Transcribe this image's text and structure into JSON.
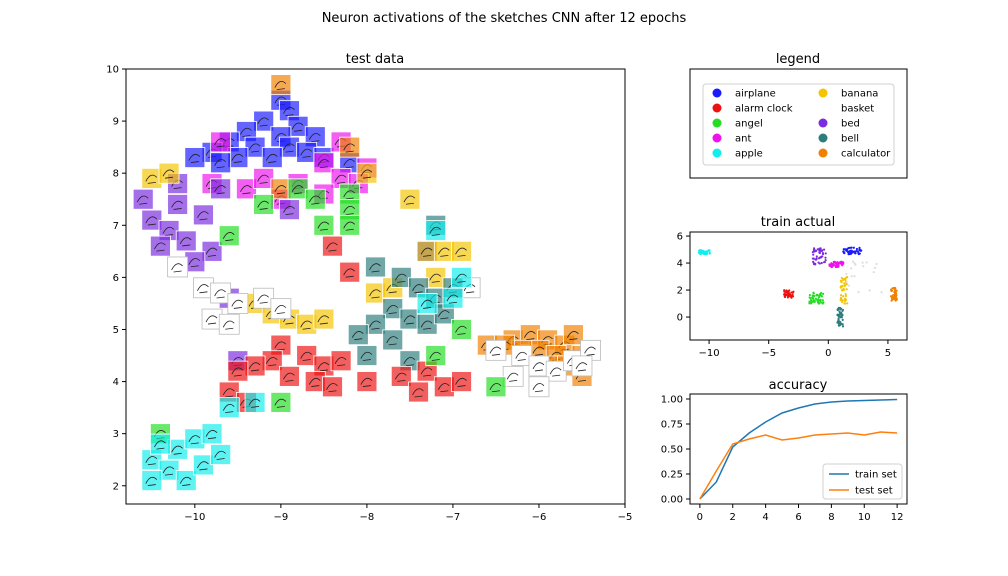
{
  "figure": {
    "suptitle": "Neuron activations of the sketches CNN after 12 epochs"
  },
  "colors": {
    "airplane": "#1a1aff",
    "alarm clock": "#ee1111",
    "angel": "#22dd22",
    "ant": "#ee11ee",
    "apple": "#11eeee",
    "banana": "#f5c400",
    "basket": "#ffffff",
    "bed": "#7b2be0",
    "bell": "#2e7d7d",
    "calculator": "#f08000"
  },
  "legend": {
    "title": "legend",
    "entries": [
      "airplane",
      "alarm clock",
      "angel",
      "ant",
      "apple",
      "banana",
      "basket",
      "bed",
      "bell",
      "calculator"
    ]
  },
  "chart_data": [
    {
      "type": "scatter",
      "title": "test data",
      "xlim": [
        -10.8,
        -5
      ],
      "ylim": [
        1.65,
        10
      ],
      "xticks": [
        -10,
        -9,
        -8,
        -7,
        -6,
        -5
      ],
      "yticks": [
        2,
        3,
        4,
        5,
        6,
        7,
        8,
        9,
        10
      ],
      "tick_labels_x": [
        "−10",
        "−9",
        "−8",
        "−7",
        "−6",
        "−5"
      ],
      "tick_labels_y": [
        "2",
        "3",
        "4",
        "5",
        "6",
        "7",
        "8",
        "9",
        "10"
      ],
      "marker": "sketch thumbnail",
      "clusters": [
        {
          "category": "airplane",
          "points": [
            [
              -9.0,
              9.4
            ],
            [
              -8.9,
              9.2
            ],
            [
              -9.2,
              9.0
            ],
            [
              -8.8,
              8.9
            ],
            [
              -9.4,
              8.8
            ],
            [
              -9.0,
              8.7
            ],
            [
              -8.6,
              8.7
            ],
            [
              -9.6,
              8.6
            ],
            [
              -9.3,
              8.5
            ],
            [
              -8.9,
              8.5
            ],
            [
              -9.8,
              8.4
            ],
            [
              -9.5,
              8.3
            ],
            [
              -8.7,
              8.4
            ],
            [
              -9.1,
              8.3
            ],
            [
              -8.5,
              8.3
            ],
            [
              -9.7,
              8.2
            ],
            [
              -8.2,
              8.2
            ],
            [
              -10.0,
              8.3
            ],
            [
              -7.3,
              6.5
            ]
          ]
        },
        {
          "category": "ant",
          "points": [
            [
              -9.7,
              8.6
            ],
            [
              -8.3,
              8.6
            ],
            [
              -8.5,
              8.2
            ],
            [
              -8.0,
              8.1
            ],
            [
              -8.3,
              7.9
            ],
            [
              -9.4,
              7.7
            ],
            [
              -8.8,
              7.8
            ],
            [
              -9.0,
              7.5
            ],
            [
              -8.5,
              7.6
            ],
            [
              -8.1,
              7.8
            ],
            [
              -9.2,
              7.9
            ],
            [
              -9.8,
              7.8
            ]
          ]
        },
        {
          "category": "bed",
          "points": [
            [
              -10.6,
              7.5
            ],
            [
              -10.2,
              7.4
            ],
            [
              -9.9,
              7.2
            ],
            [
              -10.5,
              7.1
            ],
            [
              -10.3,
              6.9
            ],
            [
              -10.1,
              6.7
            ],
            [
              -10.4,
              6.6
            ],
            [
              -9.8,
              6.5
            ],
            [
              -10.0,
              6.3
            ],
            [
              -9.6,
              5.6
            ],
            [
              -9.5,
              4.4
            ],
            [
              -9.7,
              7.7
            ],
            [
              -10.2,
              7.8
            ],
            [
              -8.9,
              7.3
            ]
          ]
        },
        {
          "category": "calculator",
          "points": [
            [
              -9.0,
              9.7
            ],
            [
              -8.2,
              8.5
            ],
            [
              -9.0,
              7.7
            ],
            [
              -6.6,
              4.7
            ],
            [
              -6.3,
              4.8
            ],
            [
              -6.1,
              4.9
            ],
            [
              -5.9,
              4.8
            ],
            [
              -5.7,
              4.7
            ],
            [
              -6.0,
              4.6
            ],
            [
              -5.8,
              4.5
            ],
            [
              -6.2,
              4.6
            ],
            [
              -5.6,
              4.9
            ],
            [
              -5.5,
              4.5
            ],
            [
              -5.7,
              4.3
            ],
            [
              -5.5,
              4.1
            ],
            [
              -6.4,
              4.7
            ],
            [
              -5.9,
              4.3
            ]
          ]
        },
        {
          "category": "banana",
          "points": [
            [
              -10.5,
              7.9
            ],
            [
              -10.3,
              8.0
            ],
            [
              -9.3,
              5.5
            ],
            [
              -9.1,
              5.3
            ],
            [
              -8.9,
              5.2
            ],
            [
              -8.7,
              5.1
            ],
            [
              -8.5,
              5.2
            ],
            [
              -7.9,
              5.7
            ],
            [
              -7.7,
              5.8
            ],
            [
              -7.3,
              6.5
            ],
            [
              -7.1,
              6.5
            ],
            [
              -6.9,
              6.5
            ],
            [
              -7.2,
              6.0
            ],
            [
              -7.5,
              7.5
            ],
            [
              -8.0,
              8.0
            ]
          ]
        },
        {
          "category": "basket",
          "points": [
            [
              -10.2,
              6.2
            ],
            [
              -9.9,
              5.8
            ],
            [
              -9.7,
              5.7
            ],
            [
              -9.5,
              5.5
            ],
            [
              -9.2,
              5.6
            ],
            [
              -9.0,
              5.4
            ],
            [
              -9.8,
              5.2
            ],
            [
              -9.6,
              5.1
            ],
            [
              -6.8,
              5.8
            ],
            [
              -6.5,
              4.6
            ],
            [
              -6.2,
              4.5
            ],
            [
              -6.0,
              4.3
            ],
            [
              -5.8,
              4.2
            ],
            [
              -5.6,
              4.4
            ],
            [
              -5.4,
              4.6
            ],
            [
              -5.5,
              4.3
            ],
            [
              -6.0,
              3.9
            ],
            [
              -6.3,
              4.1
            ]
          ]
        },
        {
          "category": "bell",
          "points": [
            [
              -7.9,
              6.2
            ],
            [
              -7.6,
              6.0
            ],
            [
              -7.4,
              5.8
            ],
            [
              -7.2,
              5.6
            ],
            [
              -7.0,
              5.8
            ],
            [
              -7.7,
              5.4
            ],
            [
              -7.5,
              5.2
            ],
            [
              -7.3,
              5.1
            ],
            [
              -7.1,
              5.3
            ],
            [
              -7.9,
              5.1
            ],
            [
              -8.1,
              4.9
            ],
            [
              -7.7,
              4.8
            ],
            [
              -7.5,
              4.4
            ],
            [
              -8.0,
              4.5
            ],
            [
              -7.2,
              7.0
            ]
          ]
        },
        {
          "category": "alarm clock",
          "points": [
            [
              -8.4,
              6.6
            ],
            [
              -8.2,
              6.1
            ],
            [
              -9.0,
              4.7
            ],
            [
              -8.7,
              4.5
            ],
            [
              -8.5,
              4.3
            ],
            [
              -8.3,
              4.4
            ],
            [
              -9.1,
              4.4
            ],
            [
              -9.3,
              4.3
            ],
            [
              -9.5,
              4.2
            ],
            [
              -8.9,
              4.1
            ],
            [
              -8.6,
              4.0
            ],
            [
              -8.0,
              4.0
            ],
            [
              -8.4,
              3.9
            ],
            [
              -7.6,
              4.1
            ],
            [
              -7.3,
              4.2
            ],
            [
              -7.1,
              3.9
            ],
            [
              -6.9,
              4.0
            ],
            [
              -7.4,
              3.8
            ],
            [
              -9.6,
              3.8
            ],
            [
              -9.4,
              3.6
            ]
          ]
        },
        {
          "category": "angel",
          "points": [
            [
              -9.2,
              7.4
            ],
            [
              -8.8,
              7.7
            ],
            [
              -8.6,
              7.5
            ],
            [
              -8.2,
              7.6
            ],
            [
              -8.2,
              7.3
            ],
            [
              -8.5,
              7.0
            ],
            [
              -8.2,
              7.0
            ],
            [
              -9.6,
              6.8
            ],
            [
              -7.2,
              4.5
            ],
            [
              -6.9,
              5.0
            ],
            [
              -6.5,
              3.9
            ],
            [
              -9.0,
              3.6
            ],
            [
              -10.4,
              3.0
            ]
          ]
        },
        {
          "category": "apple",
          "points": [
            [
              -10.5,
              2.5
            ],
            [
              -10.3,
              2.3
            ],
            [
              -10.1,
              2.1
            ],
            [
              -9.9,
              2.4
            ],
            [
              -10.2,
              2.7
            ],
            [
              -10.0,
              2.9
            ],
            [
              -9.8,
              3.0
            ],
            [
              -9.7,
              2.6
            ],
            [
              -10.5,
              2.1
            ],
            [
              -10.4,
              2.8
            ],
            [
              -9.6,
              3.5
            ],
            [
              -9.3,
              3.6
            ],
            [
              -7.2,
              6.9
            ],
            [
              -6.9,
              6.0
            ],
            [
              -7.3,
              5.5
            ],
            [
              -7.0,
              5.6
            ]
          ]
        }
      ]
    },
    {
      "type": "scatter",
      "title": "train actual",
      "xlim": [
        -11.6,
        6.6
      ],
      "ylim": [
        -1.7,
        6.3
      ],
      "xticks": [
        -10,
        -5,
        0,
        5
      ],
      "yticks": [
        0,
        2,
        4,
        6
      ],
      "tick_labels_x": [
        "−10",
        "−5",
        "0",
        "5"
      ],
      "tick_labels_y": [
        "0",
        "2",
        "4",
        "6"
      ],
      "clusters": [
        {
          "category": "apple",
          "center": [
            -10.4,
            4.8
          ],
          "spread": [
            0.5,
            0.15
          ]
        },
        {
          "category": "bed",
          "center": [
            -0.7,
            4.5
          ],
          "spread": [
            0.6,
            0.6
          ]
        },
        {
          "category": "airplane",
          "center": [
            2.0,
            4.9
          ],
          "spread": [
            0.8,
            0.25
          ]
        },
        {
          "category": "ant",
          "center": [
            0.7,
            3.9
          ],
          "spread": [
            0.6,
            0.2
          ]
        },
        {
          "category": "alarm clock",
          "center": [
            -3.3,
            1.7
          ],
          "spread": [
            0.4,
            0.3
          ]
        },
        {
          "category": "angel",
          "center": [
            -1.0,
            1.4
          ],
          "spread": [
            0.6,
            0.4
          ]
        },
        {
          "category": "banana",
          "center": [
            1.3,
            2.0
          ],
          "spread": [
            0.3,
            1.0
          ]
        },
        {
          "category": "calculator",
          "center": [
            5.5,
            1.7
          ],
          "spread": [
            0.25,
            0.5
          ]
        },
        {
          "category": "bell",
          "center": [
            1.0,
            0.0
          ],
          "spread": [
            0.25,
            0.7
          ]
        },
        {
          "category": "basket",
          "center": [
            3.0,
            3.0
          ],
          "spread": [
            1.5,
            1.2
          ]
        }
      ]
    },
    {
      "type": "line",
      "title": "accuracy",
      "xlim": [
        -0.6,
        12.6
      ],
      "ylim": [
        -0.05,
        1.05
      ],
      "xticks": [
        0,
        2,
        4,
        6,
        8,
        10,
        12
      ],
      "yticks": [
        0.0,
        0.25,
        0.5,
        0.75,
        1.0
      ],
      "tick_labels_x": [
        "0",
        "2",
        "4",
        "6",
        "8",
        "10",
        "12"
      ],
      "tick_labels_y": [
        "0.00",
        "0.25",
        "0.50",
        "0.75",
        "1.00"
      ],
      "x": [
        0,
        1,
        2,
        3,
        4,
        5,
        6,
        7,
        8,
        9,
        10,
        11,
        12
      ],
      "series": [
        {
          "name": "train set",
          "color": "#1f77b4",
          "values": [
            0.0,
            0.17,
            0.52,
            0.66,
            0.77,
            0.86,
            0.91,
            0.95,
            0.97,
            0.98,
            0.985,
            0.99,
            0.995
          ]
        },
        {
          "name": "test set",
          "color": "#ff7f0e",
          "values": [
            0.0,
            0.28,
            0.55,
            0.6,
            0.64,
            0.59,
            0.61,
            0.64,
            0.65,
            0.66,
            0.64,
            0.67,
            0.66
          ]
        }
      ],
      "legend_position": "lower-right"
    }
  ]
}
